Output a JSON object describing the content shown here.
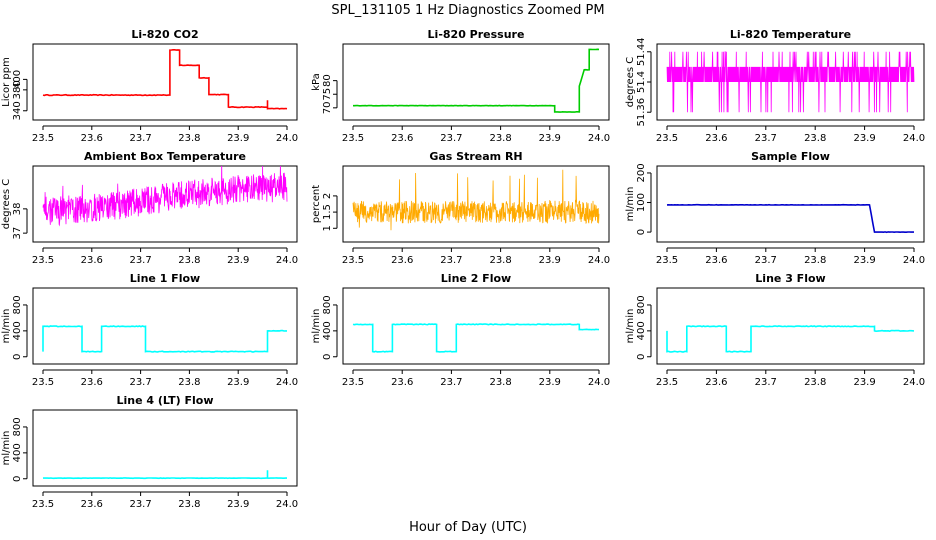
{
  "figure": {
    "title": "SPL_131105  1 Hz Diagnostics Zoomed PM",
    "xlabel": "Hour of Day (UTC)"
  },
  "chart_data": [
    {
      "type": "line",
      "title": "Li-820 CO2",
      "ylabel": "Licor ppm",
      "color": "#ff0000",
      "xlim": [
        23.5,
        24.0
      ],
      "ylim": [
        330,
        460
      ],
      "xticks": [
        23.5,
        23.6,
        23.7,
        23.8,
        23.9,
        24.0
      ],
      "yticks": [
        340,
        380,
        400
      ],
      "grid": false,
      "series": [
        {
          "x": [
            23.5,
            23.75,
            23.76,
            23.76,
            23.78,
            23.78,
            23.78,
            23.8,
            23.8,
            23.82,
            23.82,
            23.84,
            23.84,
            23.88,
            23.88,
            23.96,
            23.96,
            23.96,
            24.0
          ],
          "y": [
            370,
            370,
            370,
            456,
            456,
            430,
            427,
            427,
            427,
            427,
            403,
            403,
            371,
            371,
            347,
            347,
            360,
            344,
            344
          ]
        }
      ]
    },
    {
      "type": "line",
      "title": "Li-820 Pressure",
      "ylabel": "kPa",
      "color": "#00cc00",
      "xlim": [
        23.5,
        24.0
      ],
      "ylim": [
        67,
        92
      ],
      "xticks": [
        23.5,
        23.6,
        23.7,
        23.8,
        23.9,
        24.0
      ],
      "yticks": [
        70,
        75,
        80
      ],
      "grid": false,
      "series": [
        {
          "x": [
            23.5,
            23.91,
            23.91,
            23.96,
            23.96,
            23.96,
            23.97,
            23.98,
            23.98,
            24.0
          ],
          "y": [
            70.8,
            70.8,
            68.5,
            68.5,
            70,
            78,
            84,
            84,
            91.5,
            91.5
          ]
        }
      ]
    },
    {
      "type": "line",
      "title": "Li-820 Temperature",
      "ylabel": "degrees C",
      "color": "#ff00ff",
      "xlim": [
        23.5,
        24.0
      ],
      "ylim": [
        51.355,
        51.445
      ],
      "xticks": [
        23.5,
        23.6,
        23.7,
        23.8,
        23.9,
        24.0
      ],
      "yticks": [
        51.36,
        51.4,
        51.44
      ],
      "grid": false,
      "series": [
        {
          "x": [
            23.5,
            23.6,
            23.7,
            23.8,
            23.9,
            24.0
          ],
          "y": [
            51.41,
            51.41,
            51.41,
            51.41,
            51.41,
            51.41
          ]
        }
      ]
    },
    {
      "type": "line",
      "title": "Ambient Box Temperature",
      "ylabel": "degrees C",
      "color": "#ff00ff",
      "xlim": [
        23.5,
        24.0
      ],
      "ylim": [
        36.8,
        39.6
      ],
      "xticks": [
        23.5,
        23.6,
        23.7,
        23.8,
        23.9,
        24.0
      ],
      "yticks": [
        37,
        38
      ],
      "grid": false,
      "series": [
        {
          "x": [
            23.5,
            23.6,
            23.7,
            23.8,
            23.9,
            24.0
          ],
          "y": [
            37.9,
            38.0,
            38.3,
            38.6,
            38.8,
            38.9
          ]
        }
      ]
    },
    {
      "type": "line",
      "title": "Gas Stream RH",
      "ylabel": "percent",
      "color": "#ffaa00",
      "xlim": [
        23.5,
        24.0
      ],
      "ylim": [
        0.7,
        2.8
      ],
      "xticks": [
        23.5,
        23.6,
        23.7,
        23.8,
        23.9,
        24.0
      ],
      "yticks": [
        1.0,
        1.5,
        2.0
      ],
      "grid": false,
      "series": [
        {
          "x": [
            23.5,
            23.6,
            23.7,
            23.8,
            23.9,
            24.0
          ],
          "y": [
            1.5,
            1.5,
            1.5,
            1.5,
            1.5,
            1.5
          ]
        }
      ]
    },
    {
      "type": "line",
      "title": "Sample Flow",
      "ylabel": "ml/min",
      "color": "#0000cc",
      "xlim": [
        23.5,
        24.0
      ],
      "ylim": [
        -20,
        210
      ],
      "xticks": [
        23.5,
        23.6,
        23.7,
        23.8,
        23.9,
        24.0
      ],
      "yticks": [
        0,
        100,
        200
      ],
      "grid": false,
      "series": [
        {
          "x": [
            23.5,
            23.91,
            23.92,
            24.0
          ],
          "y": [
            92,
            92,
            0,
            0
          ]
        }
      ]
    },
    {
      "type": "line",
      "title": "Line 1 Flow",
      "ylabel": "ml/min",
      "color": "#00ffff",
      "xlim": [
        23.5,
        24.0
      ],
      "ylim": [
        -50,
        1000
      ],
      "xticks": [
        23.5,
        23.6,
        23.7,
        23.8,
        23.9,
        24.0
      ],
      "yticks": [
        0,
        400,
        800
      ],
      "grid": false,
      "series": [
        {
          "x": [
            23.5,
            23.5,
            23.58,
            23.58,
            23.62,
            23.62,
            23.71,
            23.71,
            23.96,
            23.96,
            24.0
          ],
          "y": [
            80,
            470,
            470,
            80,
            80,
            470,
            470,
            80,
            80,
            400,
            400
          ]
        }
      ]
    },
    {
      "type": "line",
      "title": "Line 2 Flow",
      "ylabel": "ml/min",
      "color": "#00ffff",
      "xlim": [
        23.5,
        24.0
      ],
      "ylim": [
        -50,
        1000
      ],
      "xticks": [
        23.5,
        23.6,
        23.7,
        23.8,
        23.9,
        24.0
      ],
      "yticks": [
        0,
        400,
        800
      ],
      "grid": false,
      "series": [
        {
          "x": [
            23.5,
            23.54,
            23.54,
            23.58,
            23.58,
            23.67,
            23.67,
            23.71,
            23.71,
            23.96,
            23.96,
            24.0
          ],
          "y": [
            500,
            500,
            80,
            80,
            500,
            500,
            80,
            80,
            500,
            500,
            420,
            420
          ]
        }
      ]
    },
    {
      "type": "line",
      "title": "Line 3 Flow",
      "ylabel": "ml/min",
      "color": "#00ffff",
      "xlim": [
        23.5,
        24.0
      ],
      "ylim": [
        -50,
        1000
      ],
      "xticks": [
        23.5,
        23.6,
        23.7,
        23.8,
        23.9,
        24.0
      ],
      "yticks": [
        0,
        400,
        800
      ],
      "grid": false,
      "series": [
        {
          "x": [
            23.5,
            23.5,
            23.54,
            23.54,
            23.62,
            23.62,
            23.67,
            23.67,
            23.92,
            23.92,
            24.0
          ],
          "y": [
            400,
            80,
            80,
            470,
            470,
            80,
            80,
            470,
            470,
            400,
            400
          ]
        }
      ]
    },
    {
      "type": "line",
      "title": "Line 4 (LT) Flow",
      "ylabel": "ml/min",
      "color": "#00ffff",
      "xlim": [
        23.5,
        24.0
      ],
      "ylim": [
        -50,
        1000
      ],
      "xticks": [
        23.5,
        23.6,
        23.7,
        23.8,
        23.9,
        24.0
      ],
      "yticks": [
        0,
        400,
        800
      ],
      "grid": false,
      "series": [
        {
          "x": [
            23.5,
            23.96,
            23.96,
            23.96,
            24.0
          ],
          "y": [
            10,
            10,
            130,
            10,
            10
          ]
        }
      ]
    }
  ]
}
